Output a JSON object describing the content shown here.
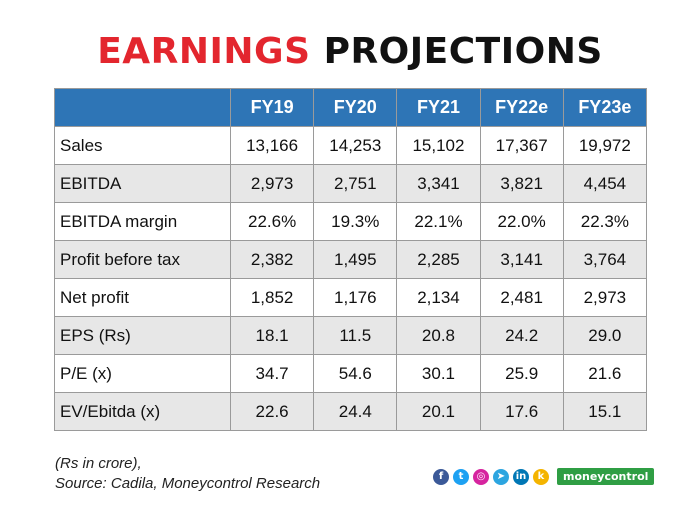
{
  "title": {
    "word1": "EARNINGS",
    "word2": "PROJECTIONS"
  },
  "chart_data": {
    "type": "table",
    "title": "EARNINGS PROJECTIONS",
    "columns": [
      "FY19",
      "FY20",
      "FY21",
      "FY22e",
      "FY23e"
    ],
    "rows": [
      {
        "label": "Sales",
        "values": [
          "13,166",
          "14,253",
          "15,102",
          "17,367",
          "19,972"
        ]
      },
      {
        "label": "EBITDA",
        "values": [
          "2,973",
          "2,751",
          "3,341",
          "3,821",
          "4,454"
        ]
      },
      {
        "label": "EBITDA margin",
        "values": [
          "22.6%",
          "19.3%",
          "22.1%",
          "22.0%",
          "22.3%"
        ]
      },
      {
        "label": "Profit before tax",
        "values": [
          "2,382",
          "1,495",
          "2,285",
          "3,141",
          "3,764"
        ]
      },
      {
        "label": "Net profit",
        "values": [
          "1,852",
          "1,176",
          "2,134",
          "2,481",
          "2,973"
        ]
      },
      {
        "label": "EPS (Rs)",
        "values": [
          "18.1",
          "11.5",
          "20.8",
          "24.2",
          "29.0"
        ]
      },
      {
        "label": "P/E (x)",
        "values": [
          "34.7",
          "54.6",
          "30.1",
          "25.9",
          "21.6"
        ]
      },
      {
        "label": "EV/Ebitda (x)",
        "values": [
          "22.6",
          "24.4",
          "20.1",
          "17.6",
          "15.1"
        ]
      }
    ]
  },
  "footer": {
    "note": "(Rs in crore),",
    "source": "Source: Cadila, Moneycontrol Research",
    "brand": "moneycontrol"
  },
  "social_icons": [
    {
      "name": "facebook-icon",
      "glyph": "f",
      "color": "#3b5998"
    },
    {
      "name": "twitter-icon",
      "glyph": "t",
      "color": "#1da1f2"
    },
    {
      "name": "instagram-icon",
      "glyph": "◎",
      "color": "#d6249f"
    },
    {
      "name": "telegram-icon",
      "glyph": "➤",
      "color": "#2ca5e0"
    },
    {
      "name": "linkedin-icon",
      "glyph": "in",
      "color": "#0077b5"
    },
    {
      "name": "koo-icon",
      "glyph": "k",
      "color": "#f4b400"
    }
  ],
  "colors": {
    "header_bg": "#2e75b6",
    "title_red": "#e3262e",
    "brand_green": "#2f9e44"
  }
}
